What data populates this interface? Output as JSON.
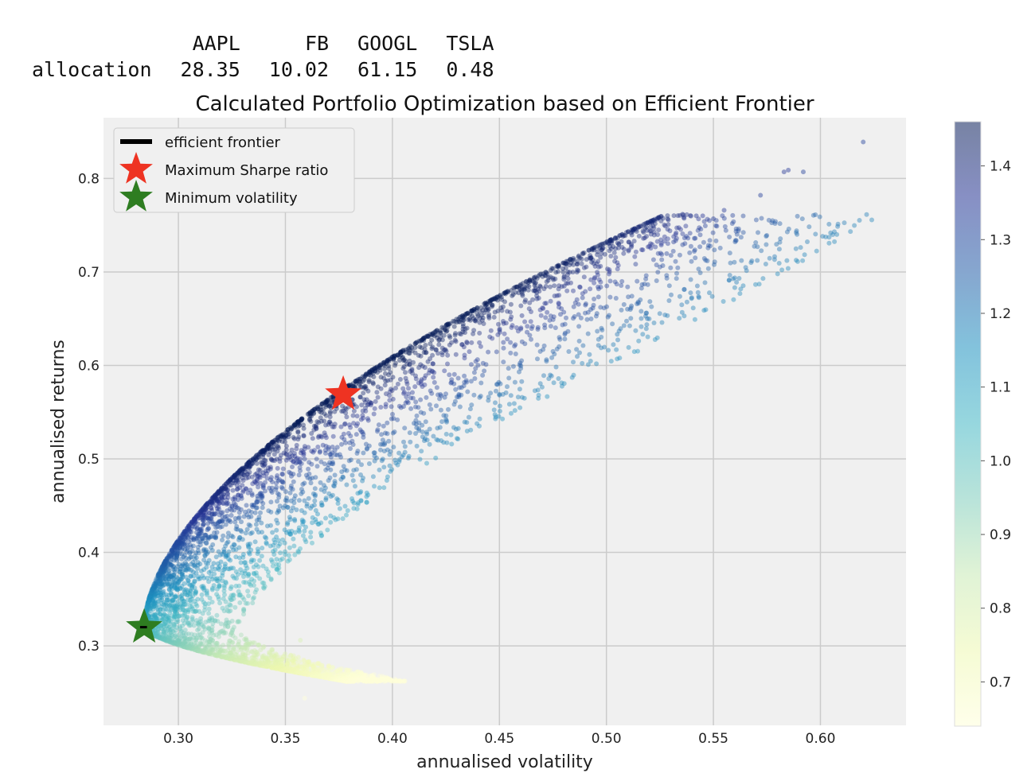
{
  "allocation_table": {
    "columns": [
      "AAPL",
      "FB",
      "GOOGL",
      "TSLA"
    ],
    "row_label": "allocation",
    "values": [
      "28.35",
      "10.02",
      "61.15",
      "0.48"
    ]
  },
  "chart_data": {
    "type": "scatter",
    "title": "Calculated Portfolio Optimization based on Efficient Frontier",
    "xlabel": "annualised volatility",
    "ylabel": "annualised returns",
    "xlim": [
      0.265,
      0.64
    ],
    "ylim": [
      0.215,
      0.865
    ],
    "xticks": [
      0.3,
      0.35,
      0.4,
      0.45,
      0.5,
      0.55,
      0.6
    ],
    "xtick_labels": [
      "0.30",
      "0.35",
      "0.40",
      "0.45",
      "0.50",
      "0.55",
      "0.60"
    ],
    "yticks": [
      0.3,
      0.4,
      0.5,
      0.6,
      0.7,
      0.8
    ],
    "ytick_labels": [
      "0.3",
      "0.4",
      "0.5",
      "0.6",
      "0.7",
      "0.8"
    ],
    "grid": true,
    "colormap": "YlGnBu",
    "colorbar": {
      "min": 0.64,
      "max": 1.46,
      "ticks": [
        0.7,
        0.8,
        0.9,
        1.0,
        1.1,
        1.2,
        1.3,
        1.4
      ],
      "tick_labels": [
        "0.7",
        "0.8",
        "0.9",
        "1.0",
        "1.1",
        "1.2",
        "1.3",
        "1.4"
      ]
    },
    "legend": {
      "placement": "upper-left",
      "entries": [
        "efficient frontier",
        "Maximum Sharpe ratio",
        "Minimum volatility"
      ]
    },
    "series": [
      {
        "name": "Maximum Sharpe ratio",
        "marker": "star",
        "color": "#ee3322",
        "x": 0.377,
        "y": 0.569
      },
      {
        "name": "Minimum volatility",
        "marker": "star",
        "color": "#2e7d21",
        "x": 0.284,
        "y": 0.32
      },
      {
        "name": "efficient frontier",
        "marker": "line",
        "color": "#000000",
        "x": [
          0.2832,
          0.2842
        ],
        "y": [
          0.32,
          0.32
        ]
      }
    ],
    "scatter_outliers": [
      {
        "x": 0.62,
        "y": 0.839
      },
      {
        "x": 0.585,
        "y": 0.809
      },
      {
        "x": 0.583,
        "y": 0.807
      },
      {
        "x": 0.592,
        "y": 0.807
      },
      {
        "x": 0.572,
        "y": 0.782
      },
      {
        "x": 0.555,
        "y": 0.766
      },
      {
        "x": 0.542,
        "y": 0.76
      },
      {
        "x": 0.545,
        "y": 0.76
      },
      {
        "x": 0.55,
        "y": 0.757
      },
      {
        "x": 0.359,
        "y": 0.244
      },
      {
        "x": 0.357,
        "y": 0.306
      }
    ],
    "colors": {
      "plot_background": "#f0f0f0",
      "grid": "#cbcbcb",
      "cmap_low": "#ffffd9",
      "cmap_mid": "#41b6c4",
      "cmap_high": "#081d58"
    }
  }
}
